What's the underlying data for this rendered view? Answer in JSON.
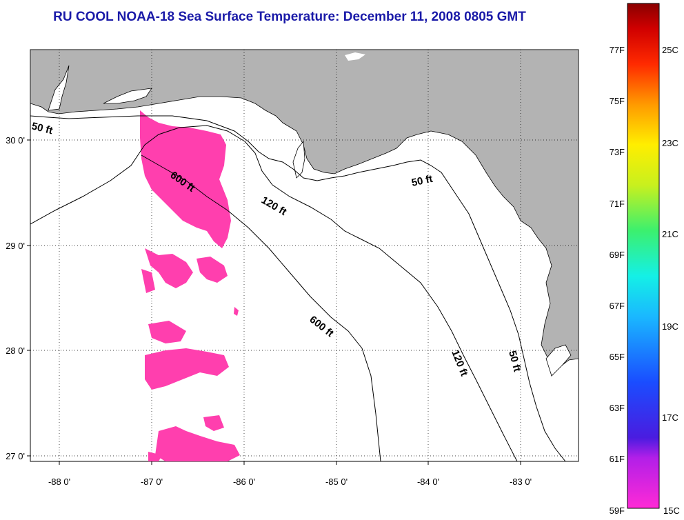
{
  "title": "RU COOL  NOAA-18  Sea Surface Temperature:  December 11, 2008 0805 GMT",
  "map": {
    "lon_range": [
      -88.3,
      -82.3
    ],
    "lat_range": [
      26.95,
      30.85
    ],
    "lon_ticks": [
      "-88 0'",
      "-87 0'",
      "-86 0'",
      "-85 0'",
      "-84 0'",
      "-83 0'"
    ],
    "lat_ticks": [
      "30 0'",
      "29 0'",
      "28 0'",
      "27 0'"
    ],
    "land_color": "#b3b3b3",
    "sst_patch_color": "#ff3fae",
    "grid": true,
    "contour_labels": [
      "50 ft",
      "600 ft",
      "120 ft",
      "50 ft",
      "600 ft",
      "120 ft",
      "50 ft"
    ]
  },
  "colorbar": {
    "f_labels": [
      "77F",
      "75F",
      "73F",
      "71F",
      "69F",
      "67F",
      "65F",
      "63F",
      "61F",
      "59F"
    ],
    "c_labels": [
      "25C",
      "23C",
      "21C",
      "19C",
      "17C",
      "15C"
    ]
  }
}
